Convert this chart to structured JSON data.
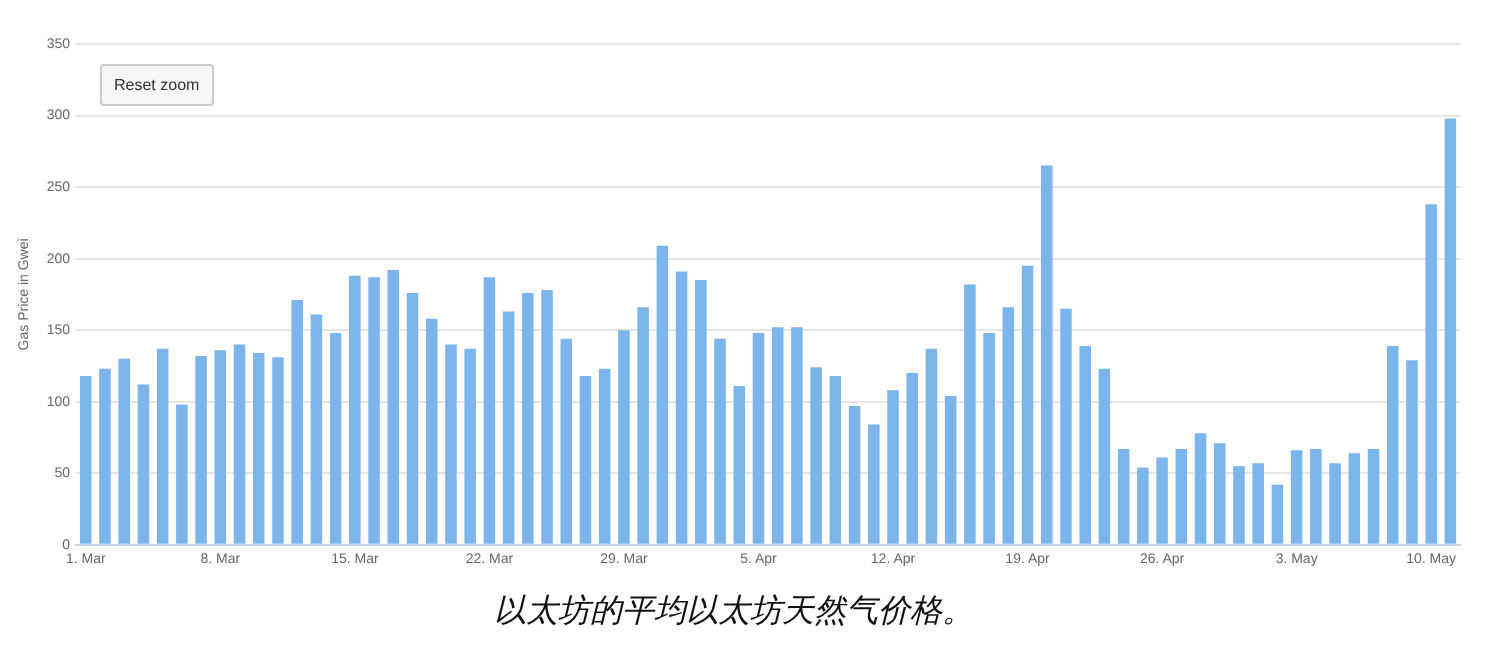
{
  "chart_data": {
    "type": "bar",
    "title": "以太坊的平均以太坊天然气价格。",
    "ylabel": "Gas Price in Gwei",
    "annotations": [
      "Reset zoom"
    ],
    "categories": [
      "1. Mar",
      null,
      null,
      null,
      null,
      null,
      null,
      "8. Mar",
      null,
      null,
      null,
      null,
      null,
      null,
      "15. Mar",
      null,
      null,
      null,
      null,
      null,
      null,
      "22. Mar",
      null,
      null,
      null,
      null,
      null,
      null,
      "29. Mar",
      null,
      null,
      null,
      null,
      null,
      null,
      "5. Apr",
      null,
      null,
      null,
      null,
      null,
      null,
      "12. Apr",
      null,
      null,
      null,
      null,
      null,
      null,
      "19. Apr",
      null,
      null,
      null,
      null,
      null,
      null,
      "26. Apr",
      null,
      null,
      null,
      null,
      null,
      null,
      "3. May",
      null,
      null,
      null,
      null,
      null,
      null,
      "10. May",
      null
    ],
    "values": [
      118,
      123,
      130,
      112,
      137,
      98,
      132,
      136,
      140,
      134,
      131,
      171,
      161,
      148,
      188,
      187,
      192,
      176,
      158,
      140,
      137,
      187,
      163,
      176,
      178,
      144,
      118,
      123,
      150,
      166,
      209,
      191,
      185,
      144,
      111,
      148,
      152,
      152,
      124,
      118,
      97,
      84,
      108,
      120,
      137,
      104,
      182,
      148,
      166,
      195,
      265,
      165,
      139,
      123,
      67,
      54,
      61,
      67,
      78,
      71,
      55,
      57,
      42,
      66,
      67,
      57,
      64,
      67,
      139,
      129,
      238,
      298
    ],
    "color": "#7cb5ec",
    "ylim": [
      0,
      350
    ],
    "yticks": [
      0,
      50,
      100,
      150,
      200,
      250,
      300,
      350
    ],
    "grid": "y",
    "legend": false
  }
}
